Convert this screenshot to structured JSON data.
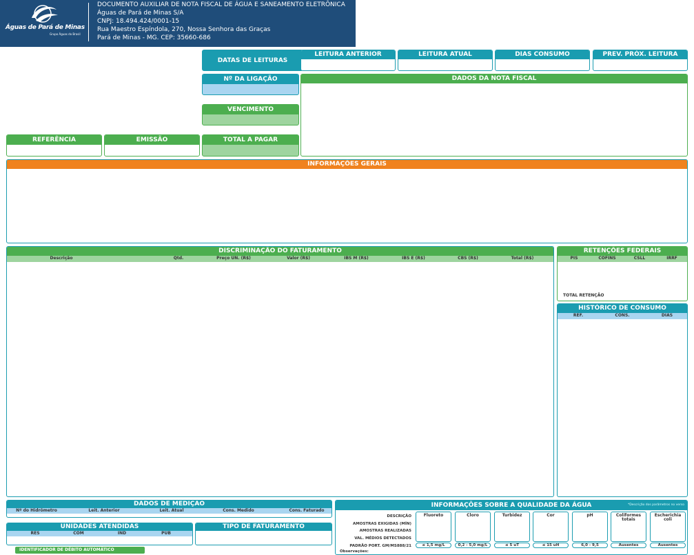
{
  "header": {
    "logo": "Águas de Pará de Minas",
    "logo_sub": "Grupo Águas do Brasil",
    "lines": [
      "DOCUMENTO AUXILIAR DE NOTA FISCAL DE ÁGUA E SANEAMENTO ELETRÔNICA",
      "Águas de Pará de Minas S/A",
      "CNPJ: 18.494.424/0001-15",
      "Rua Maestro Espíndola, 270, Nossa Senhora das Graças",
      "Pará de Minas - MG. CEP: 35660-686"
    ]
  },
  "readings": {
    "title": "DATAS DE LEITURAS",
    "fields": [
      "LEITURA ANTERIOR",
      "LEITURA ATUAL",
      "DIAS CONSUMO",
      "PREV. PRÓX. LEITURA"
    ]
  },
  "fields": {
    "connection": "Nº DA LIGAÇÃO",
    "invoice_data": "DADOS DA NOTA FISCAL",
    "due_date": "VENCIMENTO",
    "reference": "REFERÊNCIA",
    "issue": "EMISSÃO",
    "total": "TOTAL A PAGAR",
    "general_info": "INFORMAÇÕES GERAIS"
  },
  "billing": {
    "title": "DISCRIMINAÇÃO DO FATURAMENTO",
    "columns": [
      "Descrição",
      "Qtd.",
      "Preço UN. (R$)",
      "Valor (R$)",
      "IBS M (R$)",
      "IBS E (R$)",
      "CBS (R$)",
      "Total (R$)"
    ]
  },
  "retentions": {
    "title": "RETENÇÕES FEDERAIS",
    "columns": [
      "PIS",
      "COFINS",
      "CSLL",
      "IRRF"
    ],
    "total": "TOTAL RETENÇÃO"
  },
  "history": {
    "title": "HISTÓRICO DE CONSUMO",
    "columns": [
      "REF.",
      "CONS.",
      "DIAS"
    ]
  },
  "measurement": {
    "title": "DADOS DE MEDIÇÃO",
    "columns": [
      "Nº do Hidrômetro",
      "Leit. Anterior",
      "Leit. Atual",
      "Cons. Medido",
      "Cons. Faturado"
    ]
  },
  "units": {
    "title": "UNIDADES ATENDIDAS",
    "columns": [
      "RES",
      "COM",
      "IND",
      "PUB"
    ]
  },
  "billing_type": "TIPO DE FATURAMENTO",
  "auto_debit": "IDENTIFICADOR DE DÉBITO AUTOMÁTICO",
  "quality": {
    "title": "INFORMAÇÕES SOBRE A QUALIDADE DA ÁGUA",
    "note": "*Descrição dos parâmetros no verso",
    "row_labels": [
      "DESCRIÇÃO",
      "AMOSTRAS EXIGIDAS (MÍN)",
      "AMOSTRAS REALIZADAS",
      "VAL. MÉDIOS DETECTADOS",
      "PADRÃO PORT. GM/MS888/21"
    ],
    "observations": "Observações:",
    "parameters": [
      "Fluoreto",
      "Cloro",
      "Turbidez",
      "Cor",
      "pH",
      "Coliformes totais",
      "Escherichia coli"
    ],
    "standards": [
      "≤ 1,5 mg/L",
      "0,2 - 5,0 mg/L",
      "≤ 5 uT",
      "≤ 15 uH",
      "6,0 - 9,5",
      "Ausentes",
      "Ausentes"
    ]
  }
}
